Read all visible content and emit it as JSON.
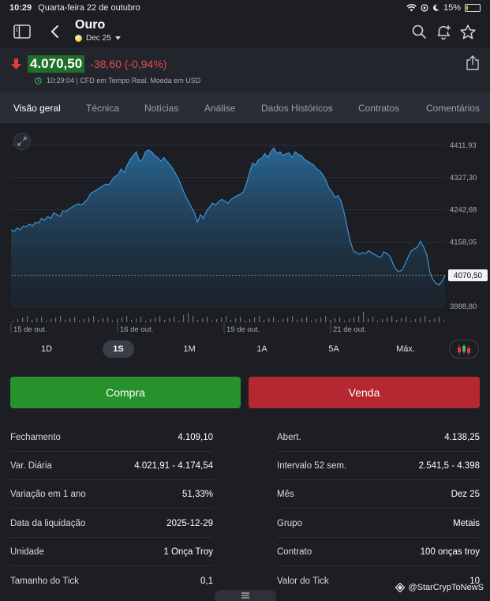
{
  "status": {
    "time": "10:29",
    "date": "Quarta-feira 22 de outubro",
    "battery": "15%",
    "battery_level": 0.15
  },
  "header": {
    "title": "Ouro",
    "contract": "Dec 25"
  },
  "quote": {
    "price": "4.070,50",
    "change": "-38,60 (-0,94%)",
    "meta": "10:29:04 | CFD em Tempo Real. Moeda em USD",
    "colors": {
      "up": "#27912b",
      "down": "#e54b4b",
      "price_bg": "#1f6e2a"
    }
  },
  "tabs": [
    "Visão geral",
    "Técnica",
    "Notícias",
    "Análise",
    "Dados Históricos",
    "Contratos",
    "Comentários"
  ],
  "ranges": [
    "1D",
    "1S",
    "1M",
    "1A",
    "5A",
    "Máx."
  ],
  "active_range": "1S",
  "actions": {
    "buy": "Compra",
    "sell": "Venda"
  },
  "chart_data": {
    "type": "area",
    "y_ticks": [
      "4411,93",
      "4327,30",
      "4242,68",
      "4158,05",
      "3988,80"
    ],
    "ylim": [
      3988.8,
      4411.93
    ],
    "x_ticks": [
      "15 de out.",
      "16 de out.",
      "19 de out.",
      "21 de out."
    ],
    "last_label": "4070,50",
    "last_value": 4070.5,
    "series": [
      {
        "values": [
          4190,
          4185,
          4195,
          4190,
          4200,
          4198,
          4205,
          4200,
          4210,
          4208,
          4220,
          4215,
          4225,
          4220,
          4235,
          4230,
          4225,
          4240,
          4238,
          4245,
          4250,
          4255,
          4258,
          4255,
          4262,
          4270,
          4285,
          4290,
          4295,
          4300,
          4305,
          4310,
          4308,
          4320,
          4330,
          4335,
          4350,
          4340,
          4360,
          4375,
          4385,
          4395,
          4370,
          4375,
          4395,
          4400,
          4395,
          4385,
          4380,
          4370,
          4380,
          4370,
          4360,
          4350,
          4335,
          4320,
          4300,
          4280,
          4265,
          4250,
          4235,
          4210,
          4230,
          4220,
          4240,
          4250,
          4260,
          4255,
          4265,
          4270,
          4265,
          4260,
          4270,
          4275,
          4280,
          4283,
          4290,
          4310,
          4340,
          4365,
          4360,
          4375,
          4378,
          4390,
          4380,
          4395,
          4405,
          4390,
          4395,
          4385,
          4390,
          4392,
          4380,
          4395,
          4388,
          4385,
          4375,
          4370,
          4365,
          4360,
          4350,
          4345,
          4335,
          4320,
          4300,
          4290,
          4275,
          4280,
          4265,
          4235,
          4195,
          4160,
          4135,
          4130,
          4125,
          4130,
          4128,
          4135,
          4130,
          4125,
          4120,
          4118,
          4132,
          4128,
          4120,
          4100,
          4085,
          4080,
          4085,
          4100,
          4120,
          4135,
          4140,
          4145,
          4160,
          4145,
          4125,
          4080,
          4060,
          4050,
          4045,
          4055,
          4070
        ]
      }
    ]
  },
  "stats": {
    "left": [
      {
        "label": "Fechamento",
        "value": "4.109,10"
      },
      {
        "label": "Var. Diária",
        "value": "4.021,91 - 4.174,54"
      },
      {
        "label": "Variação em 1 ano",
        "value": "51,33%"
      },
      {
        "label": "Data da liquidação",
        "value": "2025-12-29"
      },
      {
        "label": "Unidade",
        "value": "1 Onça Troy"
      },
      {
        "label": "Tamanho do Tick",
        "value": "0,1"
      }
    ],
    "right": [
      {
        "label": "Abert.",
        "value": "4.138,25"
      },
      {
        "label": "Intervalo 52 sem.",
        "value": "2.541,5 - 4.398"
      },
      {
        "label": "Mês",
        "value": "Dez 25"
      },
      {
        "label": "Grupo",
        "value": "Metais"
      },
      {
        "label": "Contrato",
        "value": "100 onças troy"
      },
      {
        "label": "Valor do Tick",
        "value": "10"
      }
    ]
  },
  "watermark": "@StarCrypToNewS"
}
